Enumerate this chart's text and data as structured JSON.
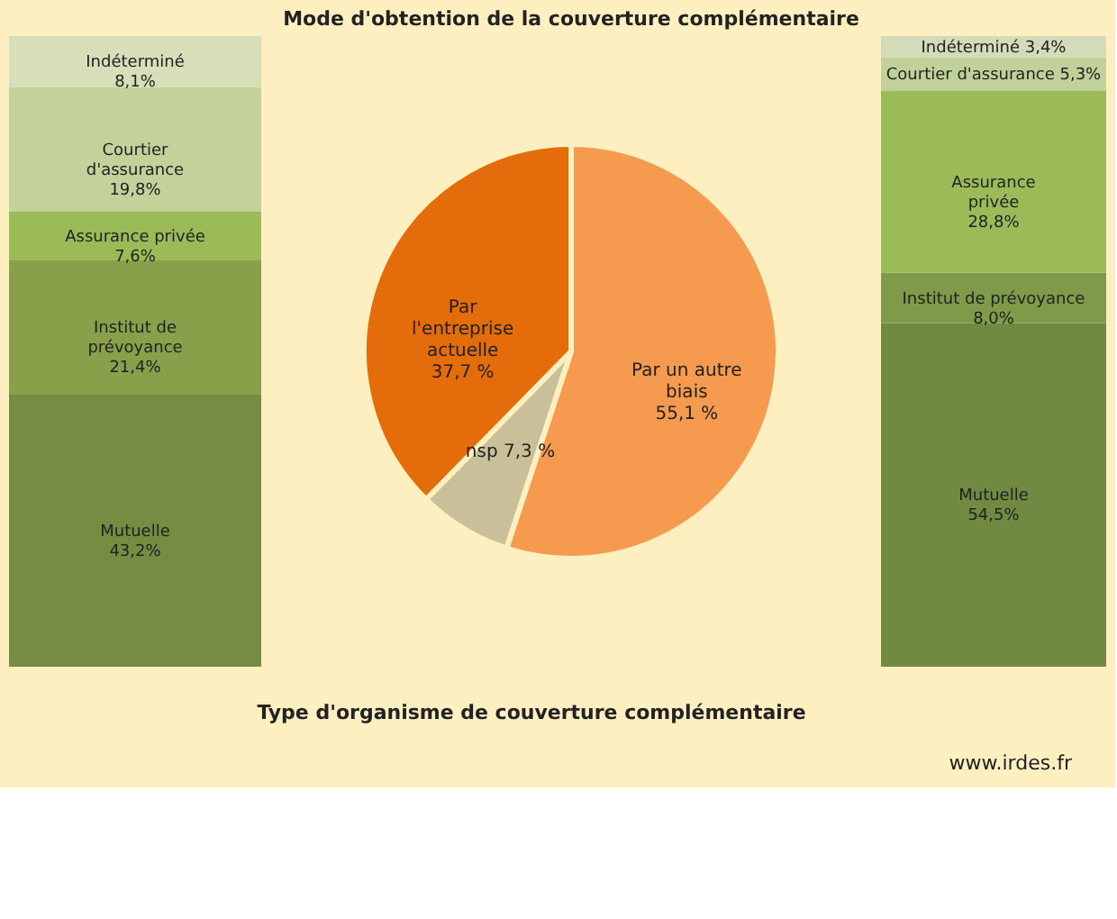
{
  "chart_data": [
    {
      "type": "bar",
      "stacked": true,
      "categories": [
        null
      ],
      "tick_labels": false,
      "annotations": [
        "Type d'organisme de couverture complémentaire"
      ],
      "series": [
        {
          "name": "Mutuelle",
          "color": "#768c42",
          "values": [
            43.2
          ],
          "value_labels": [
            "43,2%"
          ]
        },
        {
          "name": "Institut de prévoyance",
          "color": "#88a04a",
          "values": [
            21.4
          ],
          "value_labels": [
            "21,4%"
          ]
        },
        {
          "name": "Assurance privée",
          "color": "#9bbb59",
          "values": [
            7.6
          ],
          "value_labels": [
            "7,6%"
          ]
        },
        {
          "name": "Courtier d'assurance",
          "color": "#c3d29b",
          "values": [
            19.8
          ],
          "value_labels": [
            "19,8%"
          ]
        },
        {
          "name": "Indéterminé",
          "color": "#d7dfba",
          "values": [
            8.1
          ],
          "value_labels": [
            "8,1%"
          ]
        }
      ]
    },
    {
      "type": "pie",
      "title": "Mode d'obtention  de la couverture complémentaire",
      "annotations": [
        "www.irdes.fr"
      ],
      "categories": [
        "Par un autre biais",
        "nsp",
        "Par l'entreprise actuelle"
      ],
      "values": [
        55.1,
        7.3,
        37.7
      ],
      "colors": [
        "#f59a4e",
        "#c9c09a",
        "#e46c0a"
      ],
      "value_labels": [
        "55,1 %",
        "7,3 %",
        "37,7 %"
      ]
    },
    {
      "type": "bar",
      "stacked": true,
      "categories": [
        null
      ],
      "tick_labels": false,
      "series": [
        {
          "name": "Mutuelle",
          "color": "#708a42",
          "values": [
            54.5
          ],
          "value_labels": [
            "54,5%"
          ]
        },
        {
          "name": "Institut de prévoyance",
          "color": "#7f9a48",
          "values": [
            8.0
          ],
          "value_labels": [
            "8,0%"
          ]
        },
        {
          "name": "Assurance privée",
          "color": "#9bbb59",
          "values": [
            28.8
          ],
          "value_labels": [
            "28,8%"
          ]
        },
        {
          "name": "Courtier d'assurance",
          "color": "#c0d19a",
          "values": [
            5.3
          ],
          "value_labels": [
            "5,3%"
          ]
        },
        {
          "name": "Indéterminé",
          "color": "#d3dcb8",
          "values": [
            3.4
          ],
          "value_labels": [
            "3,4%"
          ]
        }
      ]
    }
  ]
}
